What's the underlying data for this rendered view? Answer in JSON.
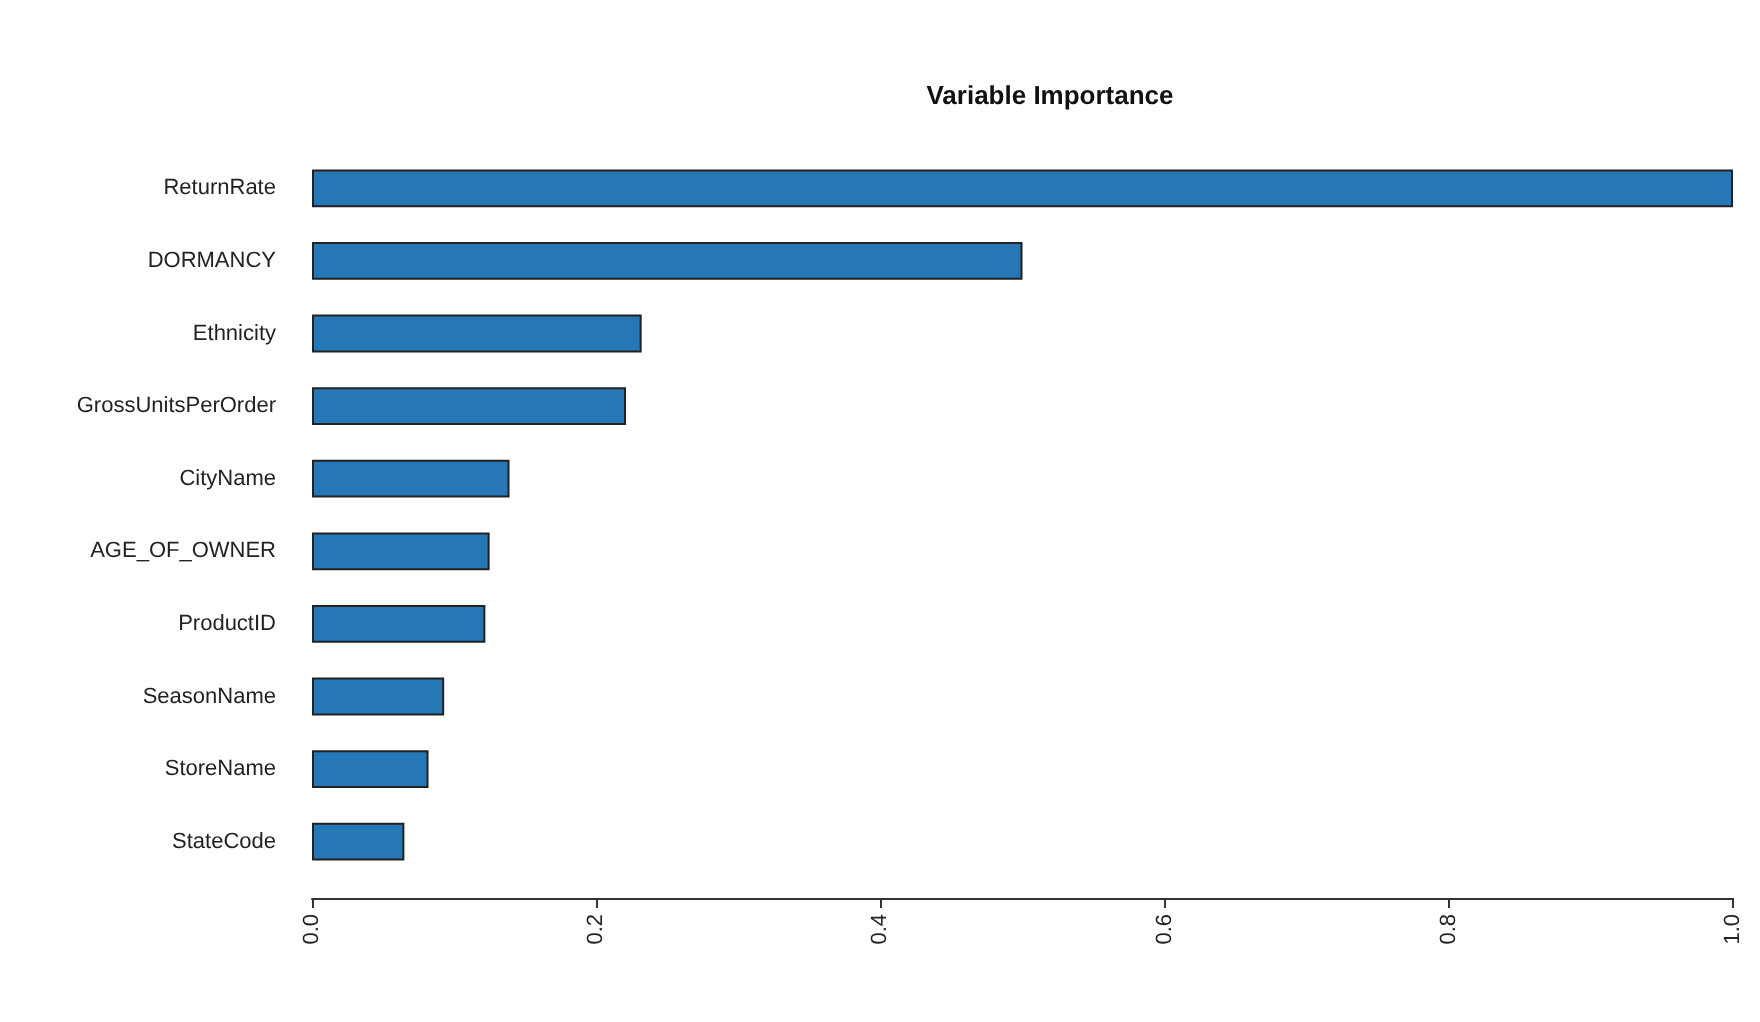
{
  "chart_data": {
    "type": "bar",
    "orientation": "horizontal",
    "title": "Variable Importance",
    "categories": [
      "ReturnRate",
      "DORMANCY",
      "Ethnicity",
      "GrossUnitsPerOrder",
      "CityName",
      "AGE_OF_OWNER",
      "ProductID",
      "SeasonName",
      "StoreName",
      "StateCode"
    ],
    "values": [
      1.0,
      0.5,
      0.232,
      0.221,
      0.139,
      0.125,
      0.122,
      0.093,
      0.082,
      0.065
    ],
    "color": "#2577b5",
    "xlim": [
      0,
      1
    ],
    "xticks": [
      {
        "value": 0,
        "label": "0.0"
      },
      {
        "value": 0.2,
        "label": "0.2"
      },
      {
        "value": 0.4,
        "label": "0.4"
      },
      {
        "value": 0.6,
        "label": "0.6"
      },
      {
        "value": 0.8,
        "label": "0.8"
      },
      {
        "value": 1,
        "label": "1.0"
      }
    ],
    "grid": false
  }
}
